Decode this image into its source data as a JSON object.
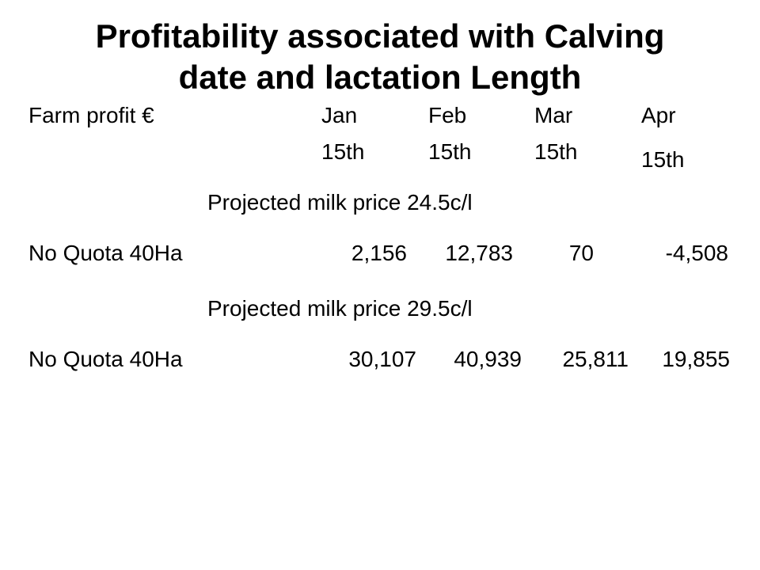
{
  "slide": {
    "title_line1": "Profitability associated with Calving",
    "title_line2": "date and lactation Length"
  },
  "table": {
    "row_header_label": "Farm profit €",
    "columns": [
      {
        "month": "Jan",
        "day": "15th"
      },
      {
        "month": "Feb",
        "day": "15th"
      },
      {
        "month": "Mar",
        "day": "15th"
      },
      {
        "month": "Apr",
        "day": "15th"
      }
    ],
    "sections": [
      {
        "heading": "Projected milk price 24.5c/l",
        "row_label": "No Quota 40Ha",
        "values": [
          "2,156",
          "12,783",
          "70",
          "-4,508"
        ]
      },
      {
        "heading": "Projected milk price 29.5c/l",
        "row_label": "No Quota 40Ha",
        "values": [
          "30,107",
          "40,939",
          "25,811",
          "19,855"
        ]
      }
    ]
  }
}
